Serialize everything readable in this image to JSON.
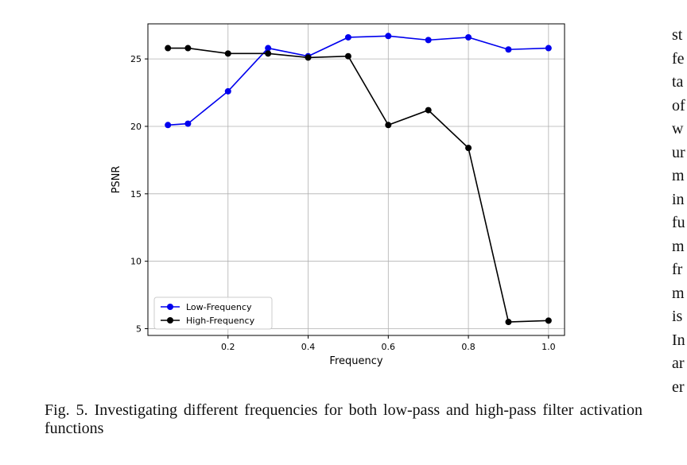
{
  "chart_data": {
    "type": "line",
    "title": "",
    "xlabel": "Frequency",
    "ylabel": "PSNR",
    "xlim": [
      0.0,
      1.04
    ],
    "ylim": [
      4.5,
      27.6
    ],
    "xticks": [
      0.2,
      0.4,
      0.6,
      0.8,
      1.0
    ],
    "xtick_labels": [
      "0.2",
      "0.4",
      "0.6",
      "0.8",
      "1.0"
    ],
    "yticks": [
      5,
      10,
      15,
      20,
      25
    ],
    "ytick_labels": [
      "5",
      "10",
      "15",
      "20",
      "25"
    ],
    "grid": true,
    "legend_position": "lower-left",
    "x": [
      0.05,
      0.1,
      0.2,
      0.3,
      0.4,
      0.5,
      0.6,
      0.7,
      0.8,
      0.9,
      1.0
    ],
    "series": [
      {
        "name": "Low-Frequency",
        "color": "#0000ee",
        "values": [
          20.1,
          20.2,
          22.6,
          25.8,
          25.2,
          26.6,
          26.7,
          26.4,
          26.6,
          25.7,
          25.8
        ]
      },
      {
        "name": "High-Frequency",
        "color": "#000000",
        "values": [
          25.8,
          25.8,
          25.4,
          25.4,
          25.1,
          25.2,
          20.1,
          21.2,
          18.4,
          5.5,
          5.6
        ]
      }
    ]
  },
  "caption": {
    "label": "Fig. 5.",
    "text": "Investigating different frequencies for both low-pass and high-pass filter activation functions"
  },
  "side_text": [
    "st",
    "fe",
    "ta",
    "of",
    "w",
    "ur",
    "m",
    "in",
    "fu",
    "m",
    "fr",
    "m",
    "is",
    "In",
    "ar",
    "er"
  ]
}
